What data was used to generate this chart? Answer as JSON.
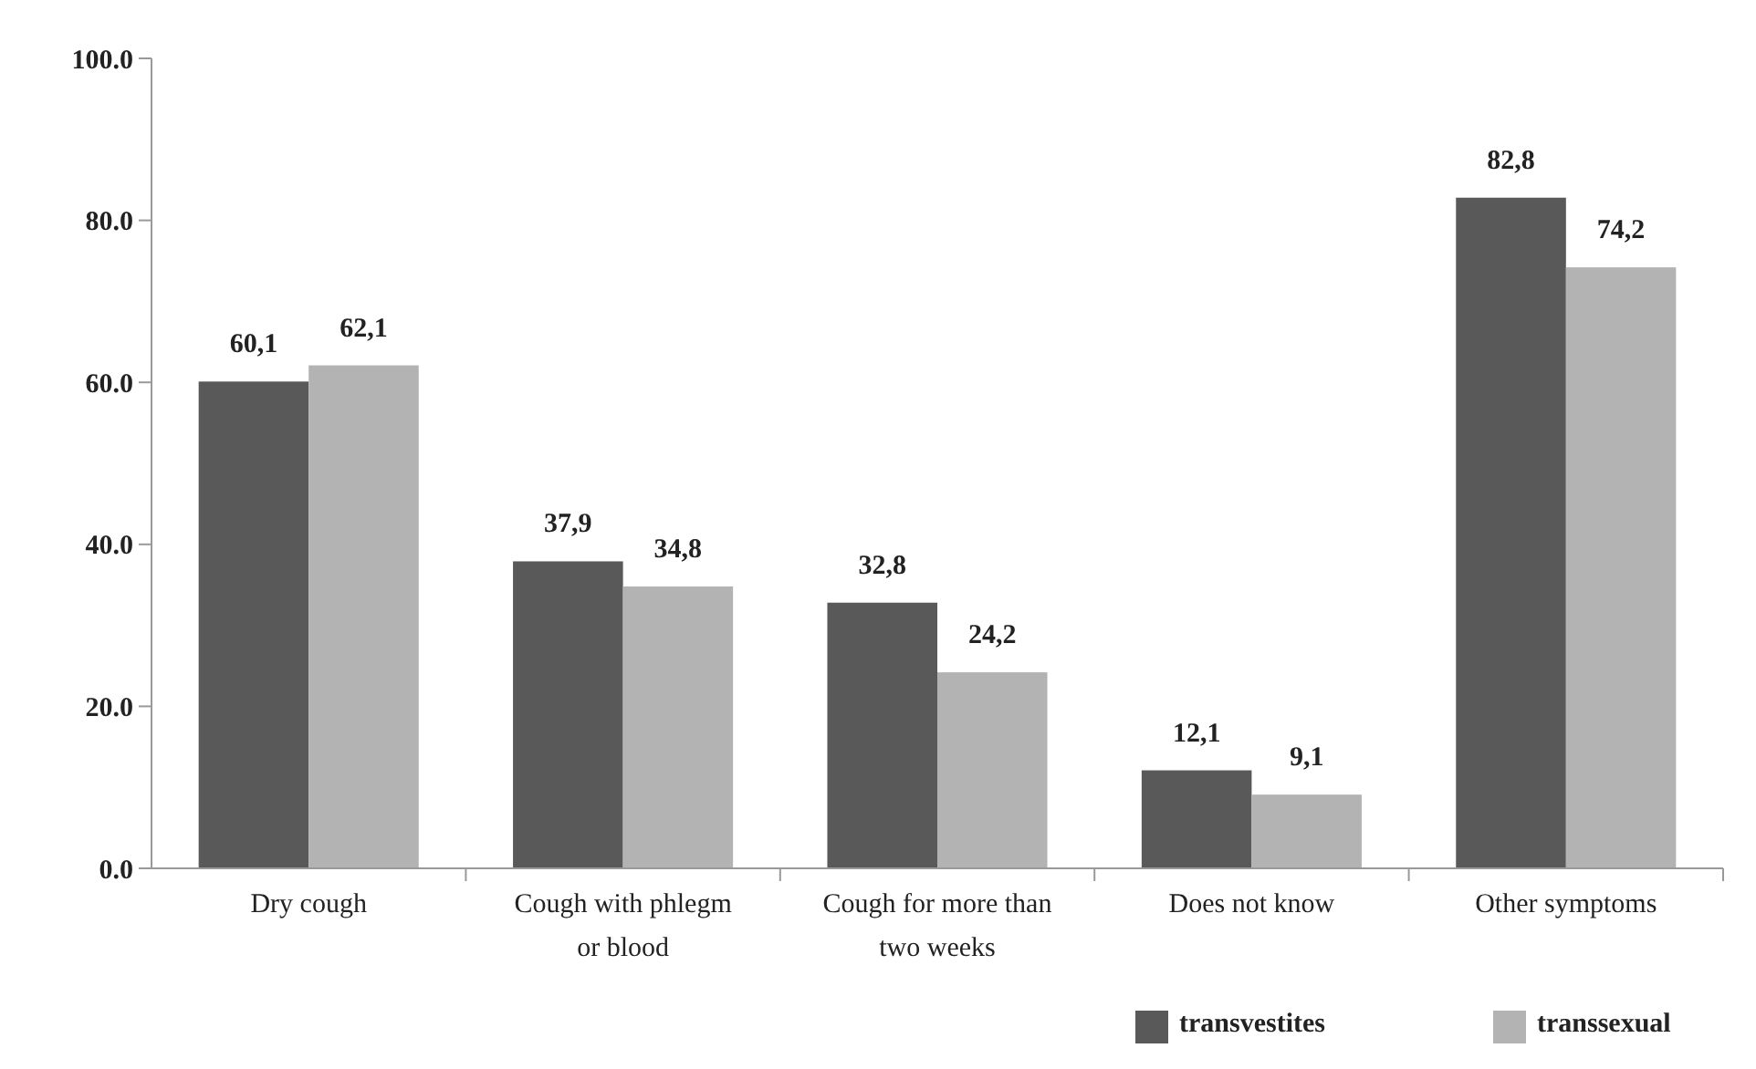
{
  "chart_data": {
    "type": "bar",
    "categories": [
      "Dry cough",
      "Cough with phlegm or blood",
      "Cough for more than two weeks",
      "Does not know",
      "Other symptoms"
    ],
    "series": [
      {
        "name": "transvestites",
        "color": "#595959",
        "values": [
          60.1,
          37.9,
          32.8,
          12.1,
          82.8
        ],
        "value_labels": [
          "60,1",
          "37,9",
          "32,8",
          "12,1",
          "82,8"
        ]
      },
      {
        "name": "transsexual",
        "color": "#b3b3b3",
        "values": [
          62.1,
          34.8,
          24.2,
          9.1,
          74.2
        ],
        "value_labels": [
          "62,1",
          "34,8",
          "24,2",
          "9,1",
          "74,2"
        ]
      }
    ],
    "ylim": [
      0,
      100
    ],
    "yticks": [
      {
        "value": 0,
        "label": "0.0"
      },
      {
        "value": 20,
        "label": "20.0"
      },
      {
        "value": 40,
        "label": "40.0"
      },
      {
        "value": 60,
        "label": "60.0"
      },
      {
        "value": 80,
        "label": "80.0"
      },
      {
        "value": 100,
        "label": "100.0"
      }
    ],
    "grid": false,
    "legend": "bottom"
  }
}
